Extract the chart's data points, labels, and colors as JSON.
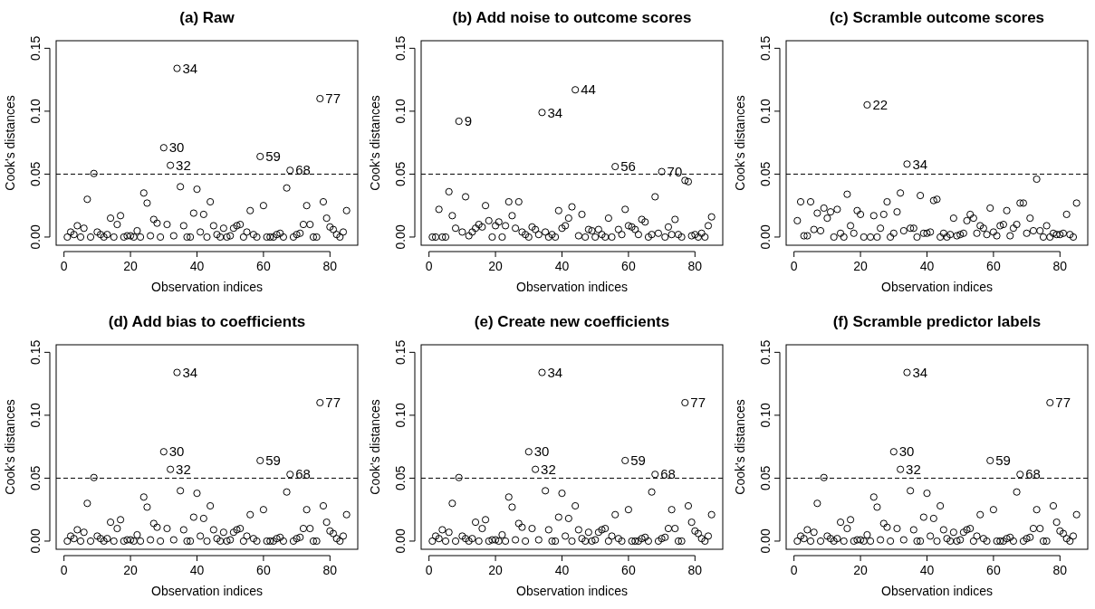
{
  "chart_data": [
    {
      "type": "scatter",
      "title": "(a) Raw",
      "xlabel": "Observation indices",
      "ylabel": "Cook's distances",
      "marker": "circle",
      "color": "#000000",
      "x": [
        1,
        2,
        3,
        4,
        5,
        6,
        7,
        8,
        9,
        10,
        11,
        12,
        13,
        14,
        15,
        16,
        17,
        18,
        19,
        20,
        21,
        22,
        23,
        24,
        25,
        26,
        27,
        28,
        29,
        30,
        31,
        32,
        33,
        34,
        35,
        36,
        37,
        38,
        39,
        40,
        41,
        42,
        43,
        44,
        45,
        46,
        47,
        48,
        49,
        50,
        51,
        52,
        53,
        54,
        55,
        56,
        57,
        58,
        59,
        60,
        61,
        62,
        63,
        64,
        65,
        66,
        67,
        68,
        69,
        70,
        71,
        72,
        73,
        74,
        75,
        76,
        77,
        78,
        79,
        80,
        81,
        82,
        83,
        84,
        85
      ],
      "values": [
        0,
        0.004,
        0.002,
        0.009,
        0,
        0.007,
        0.03,
        0,
        0.0505,
        0.004,
        0.002,
        0,
        0.002,
        0.015,
        0,
        0.01,
        0.017,
        0,
        0.001,
        0.001,
        0,
        0.005,
        0,
        0.035,
        0.027,
        0.001,
        0.014,
        0.011,
        0,
        0.071,
        0.01,
        0.057,
        0.001,
        0.134,
        0.04,
        0.009,
        0,
        0,
        0.019,
        0.038,
        0.004,
        0.018,
        0,
        0.028,
        0.009,
        0.002,
        0,
        0.007,
        0,
        0.001,
        0.007,
        0.009,
        0.01,
        0,
        0.004,
        0.021,
        0.002,
        0,
        0.064,
        0.025,
        0,
        0,
        0,
        0.002,
        0.003,
        0,
        0.039,
        0.053,
        0,
        0.002,
        0.003,
        0.01,
        0.025,
        0.01,
        0,
        0,
        0.11,
        0.028,
        0.015,
        0.008,
        0.006,
        0.002,
        0,
        0.004,
        0.021
      ],
      "xlim": [
        -2.36,
        88.36
      ],
      "xticks": [
        0,
        20,
        40,
        60,
        80
      ],
      "ylim": [
        -0.0065,
        0.156
      ],
      "yticks": [
        {
          "value": 0,
          "label": "0.00"
        },
        {
          "value": 0.05,
          "label": "0.05"
        },
        {
          "value": 0.1,
          "label": "0.10"
        },
        {
          "value": 0.15,
          "label": "0.15"
        }
      ],
      "ref_lines": [
        {
          "axis": "y",
          "value": 0.05,
          "line_style": "dashed",
          "color": "#000000"
        }
      ],
      "annotations": [
        {
          "text": "34",
          "x": 34,
          "y": 0.134
        },
        {
          "text": "77",
          "x": 77,
          "y": 0.11
        },
        {
          "text": "30",
          "x": 30,
          "y": 0.071
        },
        {
          "text": "59",
          "x": 59,
          "y": 0.064
        },
        {
          "text": "32",
          "x": 32,
          "y": 0.057
        },
        {
          "text": "68",
          "x": 68,
          "y": 0.053
        }
      ]
    },
    {
      "type": "scatter",
      "title": "(b) Add noise to outcome scores",
      "xlabel": "Observation indices",
      "ylabel": "Cook's distances",
      "marker": "circle",
      "color": "#000000",
      "x": [
        1,
        2,
        3,
        4,
        5,
        6,
        7,
        8,
        9,
        10,
        11,
        12,
        13,
        14,
        15,
        16,
        17,
        18,
        19,
        20,
        21,
        22,
        23,
        24,
        25,
        26,
        27,
        28,
        29,
        30,
        31,
        32,
        33,
        34,
        35,
        36,
        37,
        38,
        39,
        40,
        41,
        42,
        43,
        44,
        45,
        46,
        47,
        48,
        49,
        50,
        51,
        52,
        53,
        54,
        55,
        56,
        57,
        58,
        59,
        60,
        61,
        62,
        63,
        64,
        65,
        66,
        67,
        68,
        69,
        70,
        71,
        72,
        73,
        74,
        75,
        76,
        77,
        78,
        79,
        80,
        81,
        82,
        83,
        84,
        85
      ],
      "values": [
        0,
        0,
        0.022,
        0,
        0,
        0.036,
        0.017,
        0.007,
        0.092,
        0.004,
        0.032,
        0.001,
        0.004,
        0.007,
        0.01,
        0.008,
        0.025,
        0.013,
        0,
        0.009,
        0.012,
        0,
        0.009,
        0.028,
        0.017,
        0.007,
        0.028,
        0.004,
        0.002,
        0,
        0.008,
        0.006,
        0.002,
        0.099,
        0.004,
        0,
        0.002,
        0,
        0.021,
        0.007,
        0.009,
        0.015,
        0.024,
        0.117,
        0.001,
        0.018,
        0,
        0.006,
        0.005,
        0,
        0.006,
        0.002,
        0,
        0.015,
        0,
        0.056,
        0.006,
        0.002,
        0.022,
        0.009,
        0.008,
        0.006,
        0.002,
        0.014,
        0.012,
        0,
        0.002,
        0.032,
        0.003,
        0.052,
        0,
        0.008,
        0.002,
        0.014,
        0.002,
        0,
        0.045,
        0.044,
        0.001,
        0.002,
        0,
        0.003,
        0,
        0.009,
        0.016
      ],
      "xlim": [
        -2.36,
        88.36
      ],
      "xticks": [
        0,
        20,
        40,
        60,
        80
      ],
      "ylim": [
        -0.0065,
        0.156
      ],
      "yticks": [
        {
          "value": 0,
          "label": "0.00"
        },
        {
          "value": 0.05,
          "label": "0.05"
        },
        {
          "value": 0.1,
          "label": "0.10"
        },
        {
          "value": 0.15,
          "label": "0.15"
        }
      ],
      "ref_lines": [
        {
          "axis": "y",
          "value": 0.05,
          "line_style": "dashed",
          "color": "#000000"
        }
      ],
      "annotations": [
        {
          "text": "44",
          "x": 44,
          "y": 0.117
        },
        {
          "text": "34",
          "x": 34,
          "y": 0.099
        },
        {
          "text": "9",
          "x": 9,
          "y": 0.092
        },
        {
          "text": "56",
          "x": 56,
          "y": 0.056
        },
        {
          "text": "70",
          "x": 70,
          "y": 0.052
        }
      ]
    },
    {
      "type": "scatter",
      "title": "(c) Scramble outcome scores",
      "xlabel": "Observation indices",
      "ylabel": "Cook's distances",
      "marker": "circle",
      "color": "#000000",
      "x": [
        1,
        2,
        3,
        4,
        5,
        6,
        7,
        8,
        9,
        10,
        11,
        12,
        13,
        14,
        15,
        16,
        17,
        18,
        19,
        20,
        21,
        22,
        23,
        24,
        25,
        26,
        27,
        28,
        29,
        30,
        31,
        32,
        33,
        34,
        35,
        36,
        37,
        38,
        39,
        40,
        41,
        42,
        43,
        44,
        45,
        46,
        47,
        48,
        49,
        50,
        51,
        52,
        53,
        54,
        55,
        56,
        57,
        58,
        59,
        60,
        61,
        62,
        63,
        64,
        65,
        66,
        67,
        68,
        69,
        70,
        71,
        72,
        73,
        74,
        75,
        76,
        77,
        78,
        79,
        80,
        81,
        82,
        83,
        84,
        85
      ],
      "values": [
        0.013,
        0.028,
        0.001,
        0.001,
        0.028,
        0.006,
        0.019,
        0.005,
        0.023,
        0.015,
        0.02,
        0,
        0.022,
        0.003,
        0,
        0.034,
        0.009,
        0.003,
        0.021,
        0.018,
        0,
        0.105,
        0,
        0.017,
        0,
        0.007,
        0.018,
        0.028,
        0,
        0.003,
        0.02,
        0.035,
        0.005,
        0.058,
        0.007,
        0.007,
        0,
        0.033,
        0.003,
        0.003,
        0.004,
        0.029,
        0.03,
        0,
        0.003,
        0,
        0.002,
        0.015,
        0.001,
        0.002,
        0.003,
        0.013,
        0.018,
        0.015,
        0.003,
        0.009,
        0.007,
        0.002,
        0.023,
        0.004,
        0.001,
        0.009,
        0.01,
        0.021,
        0.001,
        0.007,
        0.01,
        0.027,
        0.027,
        0.003,
        0.015,
        0.005,
        0.046,
        0.005,
        0,
        0.009,
        0,
        0.003,
        0.002,
        0.002,
        0.003,
        0.018,
        0.002,
        0,
        0.027
      ],
      "xlim": [
        -2.36,
        88.36
      ],
      "xticks": [
        0,
        20,
        40,
        60,
        80
      ],
      "ylim": [
        -0.0065,
        0.156
      ],
      "yticks": [
        {
          "value": 0,
          "label": "0.00"
        },
        {
          "value": 0.05,
          "label": "0.05"
        },
        {
          "value": 0.1,
          "label": "0.10"
        },
        {
          "value": 0.15,
          "label": "0.15"
        }
      ],
      "ref_lines": [
        {
          "axis": "y",
          "value": 0.05,
          "line_style": "dashed",
          "color": "#000000"
        }
      ],
      "annotations": [
        {
          "text": "22",
          "x": 22,
          "y": 0.105
        },
        {
          "text": "34",
          "x": 34,
          "y": 0.058
        }
      ]
    },
    {
      "type": "scatter",
      "title": "(d) Add bias to coefficients",
      "xlabel": "Observation indices",
      "ylabel": "Cook's distances",
      "marker": "circle",
      "color": "#000000",
      "x": [
        1,
        2,
        3,
        4,
        5,
        6,
        7,
        8,
        9,
        10,
        11,
        12,
        13,
        14,
        15,
        16,
        17,
        18,
        19,
        20,
        21,
        22,
        23,
        24,
        25,
        26,
        27,
        28,
        29,
        30,
        31,
        32,
        33,
        34,
        35,
        36,
        37,
        38,
        39,
        40,
        41,
        42,
        43,
        44,
        45,
        46,
        47,
        48,
        49,
        50,
        51,
        52,
        53,
        54,
        55,
        56,
        57,
        58,
        59,
        60,
        61,
        62,
        63,
        64,
        65,
        66,
        67,
        68,
        69,
        70,
        71,
        72,
        73,
        74,
        75,
        76,
        77,
        78,
        79,
        80,
        81,
        82,
        83,
        84,
        85
      ],
      "values": [
        0,
        0.004,
        0.002,
        0.009,
        0,
        0.007,
        0.03,
        0,
        0.0505,
        0.004,
        0.002,
        0,
        0.002,
        0.015,
        0,
        0.01,
        0.017,
        0,
        0.001,
        0.001,
        0,
        0.005,
        0,
        0.035,
        0.027,
        0.001,
        0.014,
        0.011,
        0,
        0.071,
        0.01,
        0.057,
        0.001,
        0.134,
        0.04,
        0.009,
        0,
        0,
        0.019,
        0.038,
        0.004,
        0.018,
        0,
        0.028,
        0.009,
        0.002,
        0,
        0.007,
        0,
        0.001,
        0.007,
        0.009,
        0.01,
        0,
        0.004,
        0.021,
        0.002,
        0,
        0.064,
        0.025,
        0,
        0,
        0,
        0.002,
        0.003,
        0,
        0.039,
        0.053,
        0,
        0.002,
        0.003,
        0.01,
        0.025,
        0.01,
        0,
        0,
        0.11,
        0.028,
        0.015,
        0.008,
        0.006,
        0.002,
        0,
        0.004,
        0.021
      ],
      "xlim": [
        -2.36,
        88.36
      ],
      "xticks": [
        0,
        20,
        40,
        60,
        80
      ],
      "ylim": [
        -0.0065,
        0.156
      ],
      "yticks": [
        {
          "value": 0,
          "label": "0.00"
        },
        {
          "value": 0.05,
          "label": "0.05"
        },
        {
          "value": 0.1,
          "label": "0.10"
        },
        {
          "value": 0.15,
          "label": "0.15"
        }
      ],
      "ref_lines": [
        {
          "axis": "y",
          "value": 0.05,
          "line_style": "dashed",
          "color": "#000000"
        }
      ],
      "annotations": [
        {
          "text": "34",
          "x": 34,
          "y": 0.134
        },
        {
          "text": "77",
          "x": 77,
          "y": 0.11
        },
        {
          "text": "30",
          "x": 30,
          "y": 0.071
        },
        {
          "text": "59",
          "x": 59,
          "y": 0.064
        },
        {
          "text": "32",
          "x": 32,
          "y": 0.057
        },
        {
          "text": "68",
          "x": 68,
          "y": 0.053
        }
      ]
    },
    {
      "type": "scatter",
      "title": "(e) Create new coefficients",
      "xlabel": "Observation indices",
      "ylabel": "Cook's distances",
      "marker": "circle",
      "color": "#000000",
      "x": [
        1,
        2,
        3,
        4,
        5,
        6,
        7,
        8,
        9,
        10,
        11,
        12,
        13,
        14,
        15,
        16,
        17,
        18,
        19,
        20,
        21,
        22,
        23,
        24,
        25,
        26,
        27,
        28,
        29,
        30,
        31,
        32,
        33,
        34,
        35,
        36,
        37,
        38,
        39,
        40,
        41,
        42,
        43,
        44,
        45,
        46,
        47,
        48,
        49,
        50,
        51,
        52,
        53,
        54,
        55,
        56,
        57,
        58,
        59,
        60,
        61,
        62,
        63,
        64,
        65,
        66,
        67,
        68,
        69,
        70,
        71,
        72,
        73,
        74,
        75,
        76,
        77,
        78,
        79,
        80,
        81,
        82,
        83,
        84,
        85
      ],
      "values": [
        0,
        0.004,
        0.002,
        0.009,
        0,
        0.007,
        0.03,
        0,
        0.0505,
        0.004,
        0.002,
        0,
        0.002,
        0.015,
        0,
        0.01,
        0.017,
        0,
        0.001,
        0.001,
        0,
        0.005,
        0,
        0.035,
        0.027,
        0.001,
        0.014,
        0.011,
        0,
        0.071,
        0.01,
        0.057,
        0.001,
        0.134,
        0.04,
        0.009,
        0,
        0,
        0.019,
        0.038,
        0.004,
        0.018,
        0,
        0.028,
        0.009,
        0.002,
        0,
        0.007,
        0,
        0.001,
        0.007,
        0.009,
        0.01,
        0,
        0.004,
        0.021,
        0.002,
        0,
        0.064,
        0.025,
        0,
        0,
        0,
        0.002,
        0.003,
        0,
        0.039,
        0.053,
        0,
        0.002,
        0.003,
        0.01,
        0.025,
        0.01,
        0,
        0,
        0.11,
        0.028,
        0.015,
        0.008,
        0.006,
        0.002,
        0,
        0.004,
        0.021
      ],
      "xlim": [
        -2.36,
        88.36
      ],
      "xticks": [
        0,
        20,
        40,
        60,
        80
      ],
      "ylim": [
        -0.0065,
        0.156
      ],
      "yticks": [
        {
          "value": 0,
          "label": "0.00"
        },
        {
          "value": 0.05,
          "label": "0.05"
        },
        {
          "value": 0.1,
          "label": "0.10"
        },
        {
          "value": 0.15,
          "label": "0.15"
        }
      ],
      "ref_lines": [
        {
          "axis": "y",
          "value": 0.05,
          "line_style": "dashed",
          "color": "#000000"
        }
      ],
      "annotations": [
        {
          "text": "34",
          "x": 34,
          "y": 0.134
        },
        {
          "text": "77",
          "x": 77,
          "y": 0.11
        },
        {
          "text": "30",
          "x": 30,
          "y": 0.071
        },
        {
          "text": "59",
          "x": 59,
          "y": 0.064
        },
        {
          "text": "32",
          "x": 32,
          "y": 0.057
        },
        {
          "text": "68",
          "x": 68,
          "y": 0.053
        }
      ]
    },
    {
      "type": "scatter",
      "title": "(f) Scramble predictor labels",
      "xlabel": "Observation indices",
      "ylabel": "Cook's distances",
      "marker": "circle",
      "color": "#000000",
      "x": [
        1,
        2,
        3,
        4,
        5,
        6,
        7,
        8,
        9,
        10,
        11,
        12,
        13,
        14,
        15,
        16,
        17,
        18,
        19,
        20,
        21,
        22,
        23,
        24,
        25,
        26,
        27,
        28,
        29,
        30,
        31,
        32,
        33,
        34,
        35,
        36,
        37,
        38,
        39,
        40,
        41,
        42,
        43,
        44,
        45,
        46,
        47,
        48,
        49,
        50,
        51,
        52,
        53,
        54,
        55,
        56,
        57,
        58,
        59,
        60,
        61,
        62,
        63,
        64,
        65,
        66,
        67,
        68,
        69,
        70,
        71,
        72,
        73,
        74,
        75,
        76,
        77,
        78,
        79,
        80,
        81,
        82,
        83,
        84,
        85
      ],
      "values": [
        0,
        0.004,
        0.002,
        0.009,
        0,
        0.007,
        0.03,
        0,
        0.0505,
        0.004,
        0.002,
        0,
        0.002,
        0.015,
        0,
        0.01,
        0.017,
        0,
        0.001,
        0.001,
        0,
        0.005,
        0,
        0.035,
        0.027,
        0.001,
        0.014,
        0.011,
        0,
        0.071,
        0.01,
        0.057,
        0.001,
        0.134,
        0.04,
        0.009,
        0,
        0,
        0.019,
        0.038,
        0.004,
        0.018,
        0,
        0.028,
        0.009,
        0.002,
        0,
        0.007,
        0,
        0.001,
        0.007,
        0.009,
        0.01,
        0,
        0.004,
        0.021,
        0.002,
        0,
        0.064,
        0.025,
        0,
        0,
        0,
        0.002,
        0.003,
        0,
        0.039,
        0.053,
        0,
        0.002,
        0.003,
        0.01,
        0.025,
        0.01,
        0,
        0,
        0.11,
        0.028,
        0.015,
        0.008,
        0.006,
        0.002,
        0,
        0.004,
        0.021
      ],
      "xlim": [
        -2.36,
        88.36
      ],
      "xticks": [
        0,
        20,
        40,
        60,
        80
      ],
      "ylim": [
        -0.0065,
        0.156
      ],
      "yticks": [
        {
          "value": 0,
          "label": "0.00"
        },
        {
          "value": 0.05,
          "label": "0.05"
        },
        {
          "value": 0.1,
          "label": "0.10"
        },
        {
          "value": 0.15,
          "label": "0.15"
        }
      ],
      "ref_lines": [
        {
          "axis": "y",
          "value": 0.05,
          "line_style": "dashed",
          "color": "#000000"
        }
      ],
      "annotations": [
        {
          "text": "34",
          "x": 34,
          "y": 0.134
        },
        {
          "text": "77",
          "x": 77,
          "y": 0.11
        },
        {
          "text": "30",
          "x": 30,
          "y": 0.071
        },
        {
          "text": "59",
          "x": 59,
          "y": 0.064
        },
        {
          "text": "32",
          "x": 32,
          "y": 0.057
        },
        {
          "text": "68",
          "x": 68,
          "y": 0.053
        }
      ]
    }
  ]
}
